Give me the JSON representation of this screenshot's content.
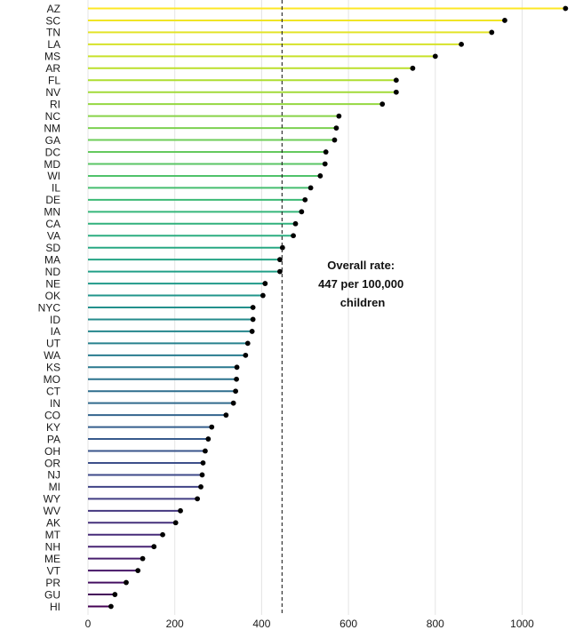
{
  "chart_data": {
    "type": "lollipop",
    "orientation": "horizontal",
    "categories": [
      "AZ",
      "SC",
      "TN",
      "LA",
      "MS",
      "AR",
      "FL",
      "NV",
      "RI",
      "NC",
      "NM",
      "GA",
      "DC",
      "MD",
      "WI",
      "IL",
      "DE",
      "MN",
      "CA",
      "VA",
      "SD",
      "MA",
      "ND",
      "NE",
      "OK",
      "NYC",
      "ID",
      "IA",
      "UT",
      "WA",
      "KS",
      "MO",
      "CT",
      "IN",
      "CO",
      "KY",
      "PA",
      "OH",
      "OR",
      "NJ",
      "MI",
      "WY",
      "WV",
      "AK",
      "MT",
      "NH",
      "ME",
      "VT",
      "PR",
      "GU",
      "HI"
    ],
    "values": [
      1100,
      960,
      930,
      860,
      800,
      748,
      710,
      710,
      678,
      578,
      572,
      568,
      548,
      546,
      535,
      513,
      500,
      492,
      478,
      473,
      448,
      442,
      442,
      408,
      403,
      380,
      380,
      378,
      368,
      363,
      343,
      342,
      340,
      335,
      318,
      285,
      277,
      270,
      265,
      263,
      260,
      252,
      213,
      202,
      172,
      152,
      126,
      115,
      88,
      62,
      53
    ],
    "xlim": [
      0,
      1120
    ],
    "xticks": [
      0,
      200,
      400,
      600,
      800,
      1000
    ],
    "reference_line": {
      "value": 447,
      "style": "dashed"
    },
    "annotation": [
      "Overall rate:",
      "447 per 100,000",
      "children"
    ],
    "colormap": "viridis",
    "grid": "vertical",
    "legend": "none",
    "title": "",
    "xlabel": "",
    "ylabel": ""
  }
}
